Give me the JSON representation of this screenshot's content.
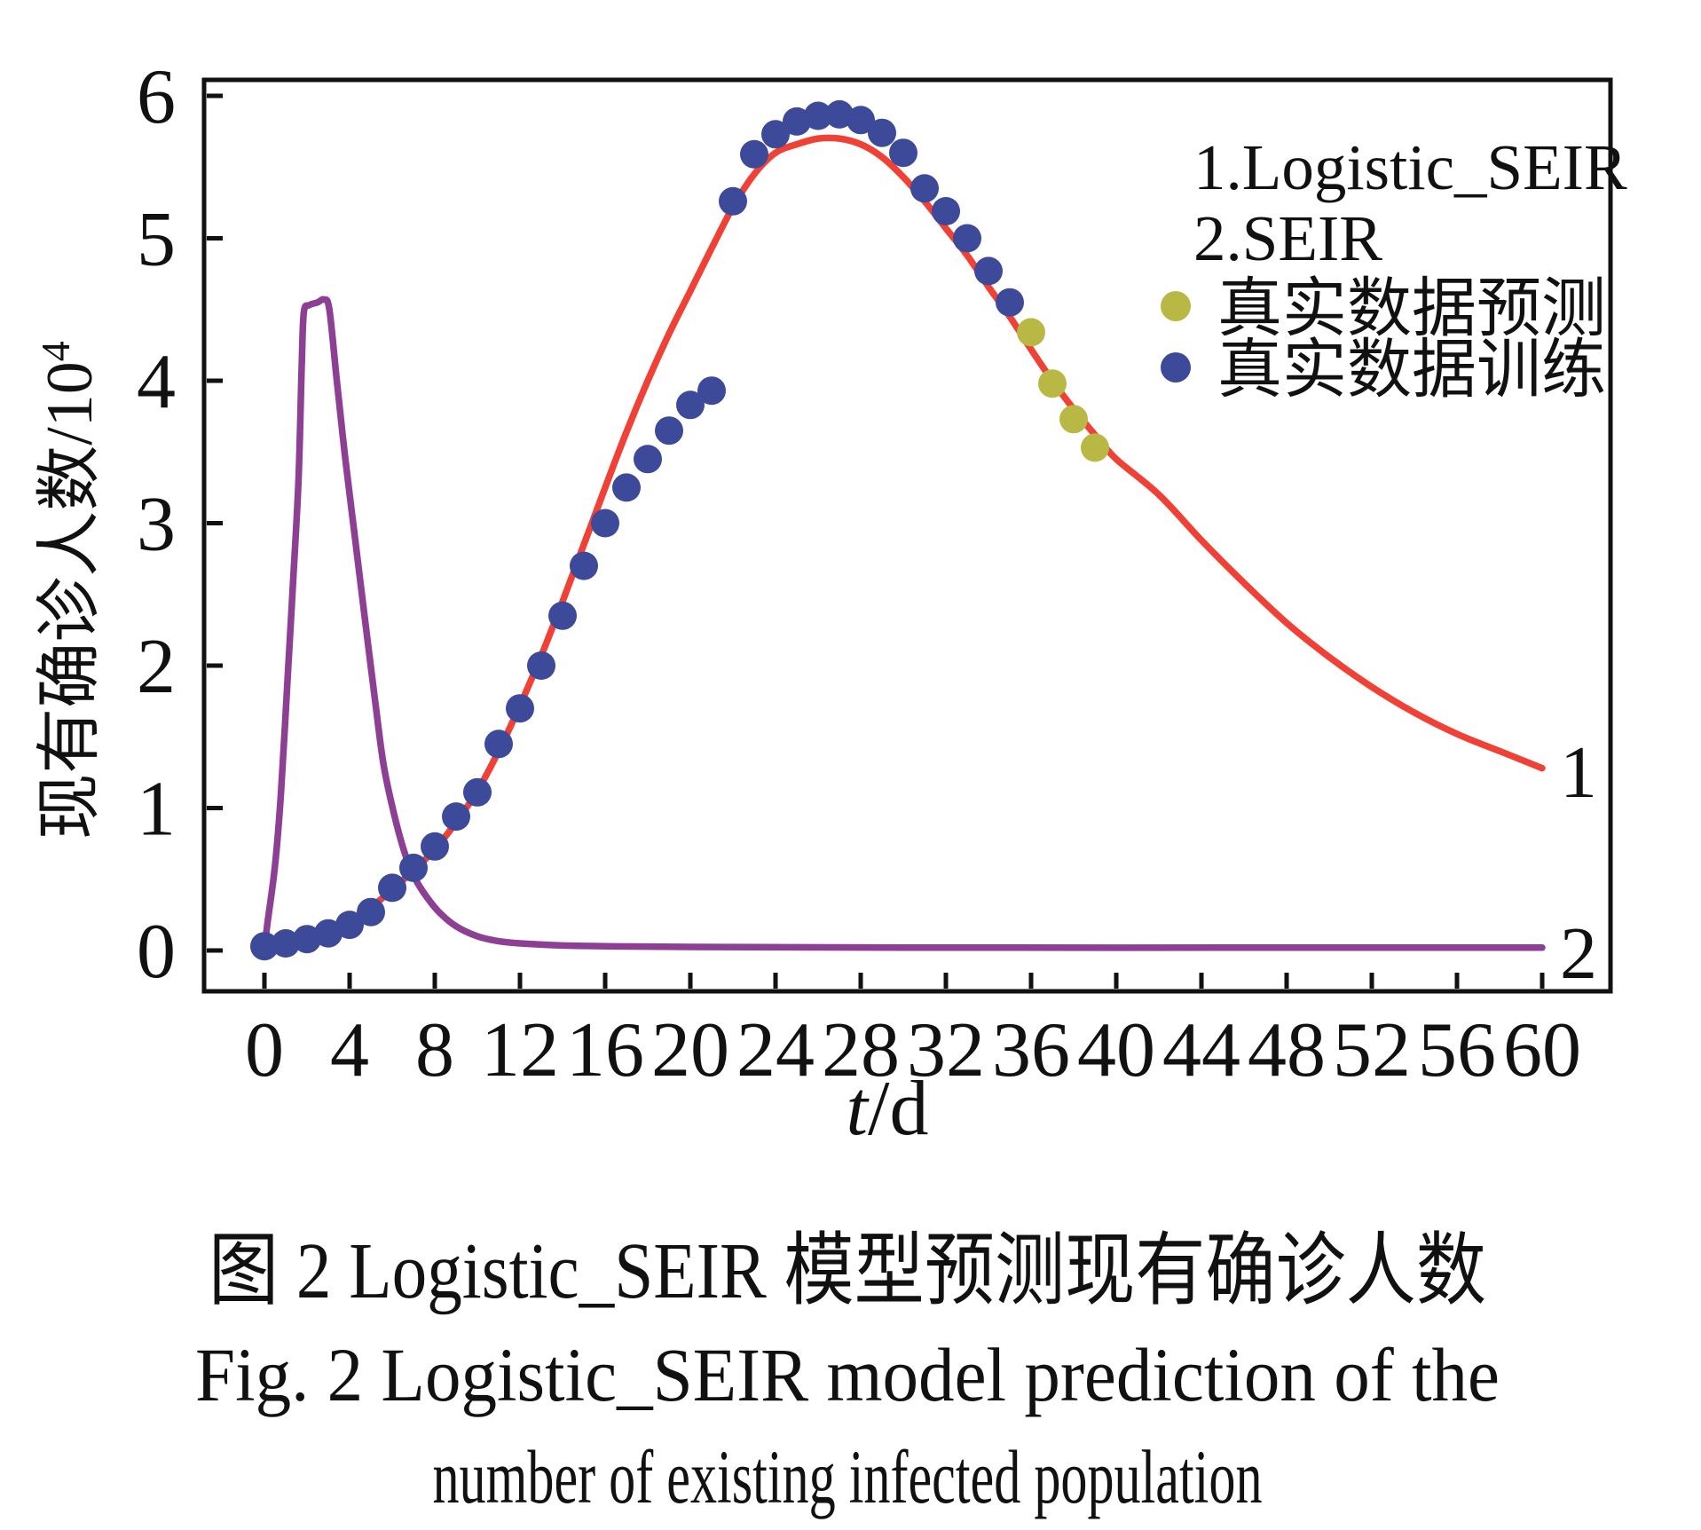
{
  "figure": {
    "captions": {
      "line1": "图 2  Logistic_SEIR 模型预测现有确诊人数",
      "line2": "Fig. 2  Logistic_SEIR model prediction of the",
      "line3": "number of existing infected population"
    }
  },
  "colors": {
    "axis": "#111111",
    "logistic_seir_red": "#ef4136",
    "seir_purple": "#8d3f94",
    "training_blue": "#3d4999",
    "prediction_yellow": "#b9b844"
  },
  "chart_data": {
    "type": "line+scatter",
    "x_axis": {
      "label_var": "t",
      "label_unit": "/d",
      "min": 0,
      "max": 60,
      "tick_step": 4
    },
    "y_axis": {
      "label_main": "现有确诊人数/10",
      "label_sup": "4",
      "min": 0,
      "max": 6,
      "tick_step": 1
    },
    "grid": false,
    "legend_position": "top-right-inside",
    "curve_labels": {
      "logistic_seir": "1",
      "seir": "2"
    },
    "legend": {
      "items": [
        {
          "label": "1.Logistic_SEIR",
          "marker": "none",
          "color": "#ef4136"
        },
        {
          "label": "2.SEIR",
          "marker": "none",
          "color": "#8d3f94"
        },
        {
          "label": "真实数据预测",
          "marker": "dot",
          "color": "#b9b844"
        },
        {
          "label": "真实数据训练",
          "marker": "dot",
          "color": "#3d4999"
        }
      ]
    },
    "series": [
      {
        "name": "1.Logistic_SEIR",
        "type": "line",
        "color": "#ef4136",
        "points": [
          [
            3.5,
            0.16
          ],
          [
            4,
            0.2
          ],
          [
            5,
            0.3
          ],
          [
            6,
            0.43
          ],
          [
            7,
            0.56
          ],
          [
            8,
            0.71
          ],
          [
            9,
            0.9
          ],
          [
            10,
            1.12
          ],
          [
            11,
            1.4
          ],
          [
            12,
            1.72
          ],
          [
            13,
            2.07
          ],
          [
            14,
            2.45
          ],
          [
            15,
            2.85
          ],
          [
            16,
            3.25
          ],
          [
            17,
            3.64
          ],
          [
            18,
            4.0
          ],
          [
            19,
            4.33
          ],
          [
            20,
            4.63
          ],
          [
            21,
            4.93
          ],
          [
            22,
            5.22
          ],
          [
            23,
            5.45
          ],
          [
            24,
            5.6
          ],
          [
            25,
            5.66
          ],
          [
            26,
            5.7
          ],
          [
            27,
            5.7
          ],
          [
            28,
            5.66
          ],
          [
            29,
            5.57
          ],
          [
            30,
            5.43
          ],
          [
            31,
            5.26
          ],
          [
            32,
            5.07
          ],
          [
            33,
            4.88
          ],
          [
            34,
            4.66
          ],
          [
            35,
            4.45
          ],
          [
            36,
            4.22
          ],
          [
            37,
            4.0
          ],
          [
            38,
            3.8
          ],
          [
            39,
            3.62
          ],
          [
            40,
            3.45
          ],
          [
            42,
            3.2
          ],
          [
            44,
            2.88
          ],
          [
            46,
            2.58
          ],
          [
            48,
            2.3
          ],
          [
            50,
            2.06
          ],
          [
            52,
            1.85
          ],
          [
            54,
            1.67
          ],
          [
            56,
            1.52
          ],
          [
            58,
            1.4
          ],
          [
            60,
            1.28
          ]
        ]
      },
      {
        "name": "2.SEIR",
        "type": "line",
        "color": "#8d3f94",
        "points": [
          [
            0,
            0.02
          ],
          [
            0.15,
            0.2
          ],
          [
            0.5,
            0.6
          ],
          [
            0.78,
            1.11
          ],
          [
            1.1,
            1.94
          ],
          [
            1.35,
            2.6
          ],
          [
            1.6,
            3.3
          ],
          [
            1.75,
            4.1
          ],
          [
            1.85,
            4.48
          ],
          [
            2.1,
            4.53
          ],
          [
            2.5,
            4.55
          ],
          [
            2.8,
            4.57
          ],
          [
            3.05,
            4.5
          ],
          [
            3.4,
            4.0
          ],
          [
            3.8,
            3.45
          ],
          [
            4.25,
            2.9
          ],
          [
            4.7,
            2.35
          ],
          [
            5.2,
            1.75
          ],
          [
            5.6,
            1.3
          ],
          [
            6.1,
            0.95
          ],
          [
            6.6,
            0.68
          ],
          [
            7.1,
            0.5
          ],
          [
            7.6,
            0.38
          ],
          [
            8.2,
            0.27
          ],
          [
            9,
            0.17
          ],
          [
            10,
            0.1
          ],
          [
            11,
            0.065
          ],
          [
            12,
            0.05
          ],
          [
            14,
            0.035
          ],
          [
            16,
            0.03
          ],
          [
            20,
            0.025
          ],
          [
            30,
            0.02
          ],
          [
            45,
            0.02
          ],
          [
            60,
            0.02
          ]
        ]
      },
      {
        "name": "真实数据训练",
        "type": "scatter",
        "color": "#3d4999",
        "points": [
          [
            0,
            0.03
          ],
          [
            1,
            0.05
          ],
          [
            2,
            0.08
          ],
          [
            3,
            0.12
          ],
          [
            4,
            0.18
          ],
          [
            5,
            0.27
          ],
          [
            6,
            0.44
          ],
          [
            7,
            0.58
          ],
          [
            8,
            0.73
          ],
          [
            9,
            0.94
          ],
          [
            10,
            1.11
          ],
          [
            11,
            1.45
          ],
          [
            12,
            1.7
          ],
          [
            13,
            2.0
          ],
          [
            14,
            2.35
          ],
          [
            15,
            2.7
          ],
          [
            16,
            3.0
          ],
          [
            17,
            3.25
          ],
          [
            18,
            3.45
          ],
          [
            19,
            3.65
          ],
          [
            20,
            3.83
          ],
          [
            21,
            3.93
          ],
          [
            22,
            5.26
          ],
          [
            23,
            5.59
          ],
          [
            24,
            5.73
          ],
          [
            25,
            5.82
          ],
          [
            26,
            5.86
          ],
          [
            27,
            5.87
          ],
          [
            28,
            5.83
          ],
          [
            29,
            5.74
          ],
          [
            30,
            5.6
          ],
          [
            31,
            5.35
          ],
          [
            32,
            5.19
          ],
          [
            33,
            5.0
          ],
          [
            34,
            4.77
          ],
          [
            35,
            4.55
          ]
        ]
      },
      {
        "name": "真实数据预测",
        "type": "scatter",
        "color": "#b9b844",
        "points": [
          [
            36,
            4.34
          ],
          [
            37,
            3.98
          ],
          [
            38,
            3.73
          ],
          [
            39,
            3.53
          ]
        ]
      }
    ]
  }
}
